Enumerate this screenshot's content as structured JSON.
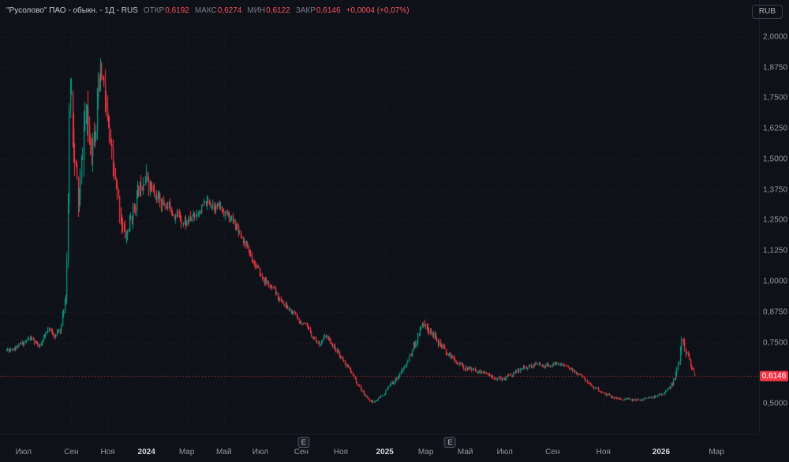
{
  "header": {
    "title": "\"Русолово\" ПАО - обыкн. - 1Д - RUS",
    "ohlc": [
      {
        "label": "ОТКР",
        "value": "0,6192"
      },
      {
        "label": "МАКС",
        "value": "0,6274"
      },
      {
        "label": "МИН",
        "value": "0,6122"
      },
      {
        "label": "ЗАКР",
        "value": "0,6146"
      }
    ],
    "change": "+0,0004 (+0,07%)",
    "currency_button": "RUB"
  },
  "colors": {
    "background": "#0e1117",
    "grid_h": "rgba(151,161,185,0.13)",
    "grid_v": "rgba(151,161,185,0.09)",
    "up": "#089981",
    "down": "#f23645",
    "axis_text": "#9598a1",
    "year_text": "#d5d9e0",
    "legend_title": "#c7cad1",
    "legend_label": "#787b86",
    "legend_value": "#f7525f",
    "price_label_bg": "#f23645",
    "price_label_text": "#ffffff",
    "button_border": "#3a3e4a",
    "button_text": "#b2b5be",
    "axis_border": "#191d27"
  },
  "price_axis": {
    "min": 0.378,
    "max": 2.151,
    "grid_prices": [
      2.0,
      1.875,
      1.75,
      1.625,
      1.5,
      1.375,
      1.25,
      1.125,
      1.0,
      0.875,
      0.75,
      0.625,
      0.5
    ],
    "labels": [
      {
        "text": "2,0000",
        "price": 2.0
      },
      {
        "text": "1,8750",
        "price": 1.875
      },
      {
        "text": "1,7500",
        "price": 1.75
      },
      {
        "text": "1,6250",
        "price": 1.625
      },
      {
        "text": "1,5000",
        "price": 1.5
      },
      {
        "text": "1,3750",
        "price": 1.375
      },
      {
        "text": "1,2500",
        "price": 1.25
      },
      {
        "text": "1,1250",
        "price": 1.125
      },
      {
        "text": "1,0000",
        "price": 1.0
      },
      {
        "text": "0,8750",
        "price": 0.875
      },
      {
        "text": "0,7500",
        "price": 0.75
      },
      {
        "text": "0,5000",
        "price": 0.5
      }
    ],
    "last_price": {
      "text": "0,6146",
      "value": 0.6146
    }
  },
  "time_axis": {
    "ticks": [
      {
        "label": "Июл",
        "t": 0.031,
        "major": false
      },
      {
        "label": "Сен",
        "t": 0.094,
        "major": false
      },
      {
        "label": "Ноя",
        "t": 0.142,
        "major": false
      },
      {
        "label": "2024",
        "t": 0.193,
        "major": true
      },
      {
        "label": "Мар",
        "t": 0.246,
        "major": false
      },
      {
        "label": "Май",
        "t": 0.295,
        "major": false
      },
      {
        "label": "Июл",
        "t": 0.343,
        "major": false
      },
      {
        "label": "Сен",
        "t": 0.397,
        "major": false
      },
      {
        "label": "Ноя",
        "t": 0.449,
        "major": false
      },
      {
        "label": "2025",
        "t": 0.507,
        "major": true
      },
      {
        "label": "Мар",
        "t": 0.561,
        "major": false
      },
      {
        "label": "Май",
        "t": 0.613,
        "major": false
      },
      {
        "label": "Июл",
        "t": 0.665,
        "major": false
      },
      {
        "label": "Сен",
        "t": 0.728,
        "major": false
      },
      {
        "label": "Ноя",
        "t": 0.795,
        "major": false
      },
      {
        "label": "2026",
        "t": 0.871,
        "major": true
      },
      {
        "label": "Мар",
        "t": 0.944,
        "major": false
      }
    ],
    "event_markers": [
      {
        "label": "E",
        "t": 0.4
      },
      {
        "label": "E",
        "t": 0.593
      }
    ]
  },
  "chart_data": {
    "type": "candlestick",
    "symbol": "Русолово ПАО - обыкн.",
    "interval": "1Д",
    "currency": "RUB",
    "up_color": "#089981",
    "down_color": "#f23645",
    "visible_price_range": [
      0.378,
      2.151
    ],
    "visible_high": 1.97,
    "visible_low": 0.5,
    "last_candle": {
      "open": 0.6192,
      "high": 0.6274,
      "low": 0.6122,
      "close": 0.6146,
      "change": 0.0004,
      "change_pct": 0.07
    },
    "num_candles": 615,
    "seed": 11,
    "x_start_frac": 0.008,
    "x_end_frac": 0.915,
    "anchors_format": "[time_fraction, price, volatility_multiplier]",
    "anchors": [
      [
        0.0,
        0.72,
        1.2
      ],
      [
        0.02,
        0.74,
        1.2
      ],
      [
        0.034,
        0.77,
        1.4
      ],
      [
        0.046,
        0.73,
        1.3
      ],
      [
        0.06,
        0.8,
        1.5
      ],
      [
        0.071,
        0.78,
        1.4
      ],
      [
        0.08,
        0.825,
        1.8
      ],
      [
        0.087,
        1.0,
        3.5
      ],
      [
        0.092,
        1.93,
        5.0
      ],
      [
        0.098,
        1.5,
        5.0
      ],
      [
        0.105,
        1.27,
        4.5
      ],
      [
        0.113,
        1.7,
        4.5
      ],
      [
        0.122,
        1.56,
        4.0
      ],
      [
        0.13,
        1.7,
        4.0
      ],
      [
        0.138,
        1.85,
        4.0
      ],
      [
        0.151,
        1.5,
        3.5
      ],
      [
        0.163,
        1.3,
        3.0
      ],
      [
        0.172,
        1.17,
        2.8
      ],
      [
        0.186,
        1.32,
        2.5
      ],
      [
        0.2,
        1.45,
        2.5
      ],
      [
        0.214,
        1.35,
        2.0
      ],
      [
        0.237,
        1.3,
        1.7
      ],
      [
        0.26,
        1.24,
        1.6
      ],
      [
        0.278,
        1.29,
        1.5
      ],
      [
        0.295,
        1.33,
        1.5
      ],
      [
        0.318,
        1.28,
        1.4
      ],
      [
        0.335,
        1.22,
        1.4
      ],
      [
        0.352,
        1.12,
        1.4
      ],
      [
        0.369,
        1.02,
        1.3
      ],
      [
        0.387,
        0.96,
        1.3
      ],
      [
        0.404,
        0.9,
        1.2
      ],
      [
        0.421,
        0.855,
        1.2
      ],
      [
        0.438,
        0.8,
        1.2
      ],
      [
        0.453,
        0.745,
        1.2
      ],
      [
        0.464,
        0.775,
        1.2
      ],
      [
        0.478,
        0.72,
        1.2
      ],
      [
        0.495,
        0.65,
        1.1
      ],
      [
        0.509,
        0.58,
        1.1
      ],
      [
        0.521,
        0.53,
        1.0
      ],
      [
        0.532,
        0.505,
        1.0
      ],
      [
        0.544,
        0.53,
        1.0
      ],
      [
        0.555,
        0.57,
        1.1
      ],
      [
        0.567,
        0.61,
        1.2
      ],
      [
        0.578,
        0.65,
        1.4
      ],
      [
        0.589,
        0.72,
        1.8
      ],
      [
        0.599,
        0.8,
        2.0
      ],
      [
        0.604,
        0.84,
        2.0
      ],
      [
        0.612,
        0.8,
        1.9
      ],
      [
        0.622,
        0.78,
        1.8
      ],
      [
        0.631,
        0.73,
        1.6
      ],
      [
        0.642,
        0.7,
        1.4
      ],
      [
        0.654,
        0.67,
        1.3
      ],
      [
        0.667,
        0.645,
        1.2
      ],
      [
        0.685,
        0.635,
        1.1
      ],
      [
        0.702,
        0.615,
        1.1
      ],
      [
        0.719,
        0.6,
        1.1
      ],
      [
        0.736,
        0.625,
        1.1
      ],
      [
        0.753,
        0.65,
        1.1
      ],
      [
        0.771,
        0.66,
        1.1
      ],
      [
        0.788,
        0.655,
        1.0
      ],
      [
        0.805,
        0.665,
        1.1
      ],
      [
        0.819,
        0.64,
        1.0
      ],
      [
        0.834,
        0.61,
        1.0
      ],
      [
        0.849,
        0.575,
        1.0
      ],
      [
        0.862,
        0.55,
        0.9
      ],
      [
        0.876,
        0.53,
        0.9
      ],
      [
        0.891,
        0.52,
        0.8
      ],
      [
        0.908,
        0.515,
        0.8
      ],
      [
        0.926,
        0.52,
        0.9
      ],
      [
        0.94,
        0.525,
        0.9
      ],
      [
        0.954,
        0.545,
        1.1
      ],
      [
        0.966,
        0.58,
        1.5
      ],
      [
        0.975,
        0.65,
        2.2
      ],
      [
        0.981,
        0.78,
        2.6
      ],
      [
        0.986,
        0.72,
        2.2
      ],
      [
        0.993,
        0.66,
        1.6
      ],
      [
        1.0,
        0.6146,
        1.0
      ]
    ]
  }
}
